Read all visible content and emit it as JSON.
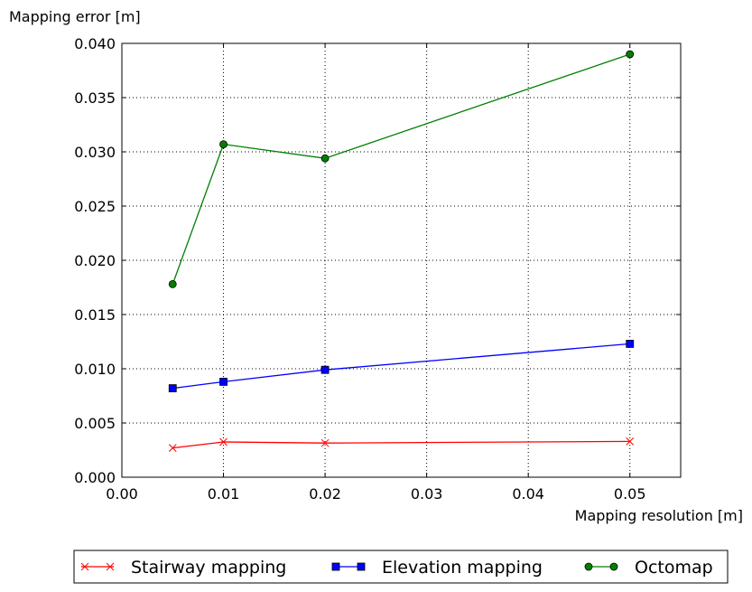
{
  "chart_data": {
    "type": "line",
    "title": "",
    "xlabel": "Mapping resolution [m]",
    "ylabel": "Mapping error [m]",
    "xlim": [
      0.0,
      0.055
    ],
    "ylim": [
      0.0,
      0.04
    ],
    "x_ticks": [
      "0.00",
      "0.01",
      "0.02",
      "0.03",
      "0.04",
      "0.05"
    ],
    "x_tick_values": [
      0.0,
      0.01,
      0.02,
      0.03,
      0.04,
      0.05
    ],
    "y_ticks": [
      "0.000",
      "0.005",
      "0.010",
      "0.015",
      "0.020",
      "0.025",
      "0.030",
      "0.035",
      "0.040"
    ],
    "y_tick_values": [
      0.0,
      0.005,
      0.01,
      0.015,
      0.02,
      0.025,
      0.03,
      0.035,
      0.04
    ],
    "grid": true,
    "legend_position": "bottom-outside",
    "x": [
      0.005,
      0.01,
      0.02,
      0.05
    ],
    "series": [
      {
        "name": "Stairway mapping",
        "color": "#ff0000",
        "marker": "x",
        "values": [
          0.0027,
          0.00325,
          0.00315,
          0.0033
        ]
      },
      {
        "name": "Elevation mapping",
        "color": "#0000ff",
        "marker": "square",
        "values": [
          0.0082,
          0.0088,
          0.0099,
          0.0123
        ]
      },
      {
        "name": "Octomap",
        "color": "#008000",
        "marker": "circle",
        "values": [
          0.0178,
          0.0307,
          0.0294,
          0.039
        ]
      }
    ]
  }
}
